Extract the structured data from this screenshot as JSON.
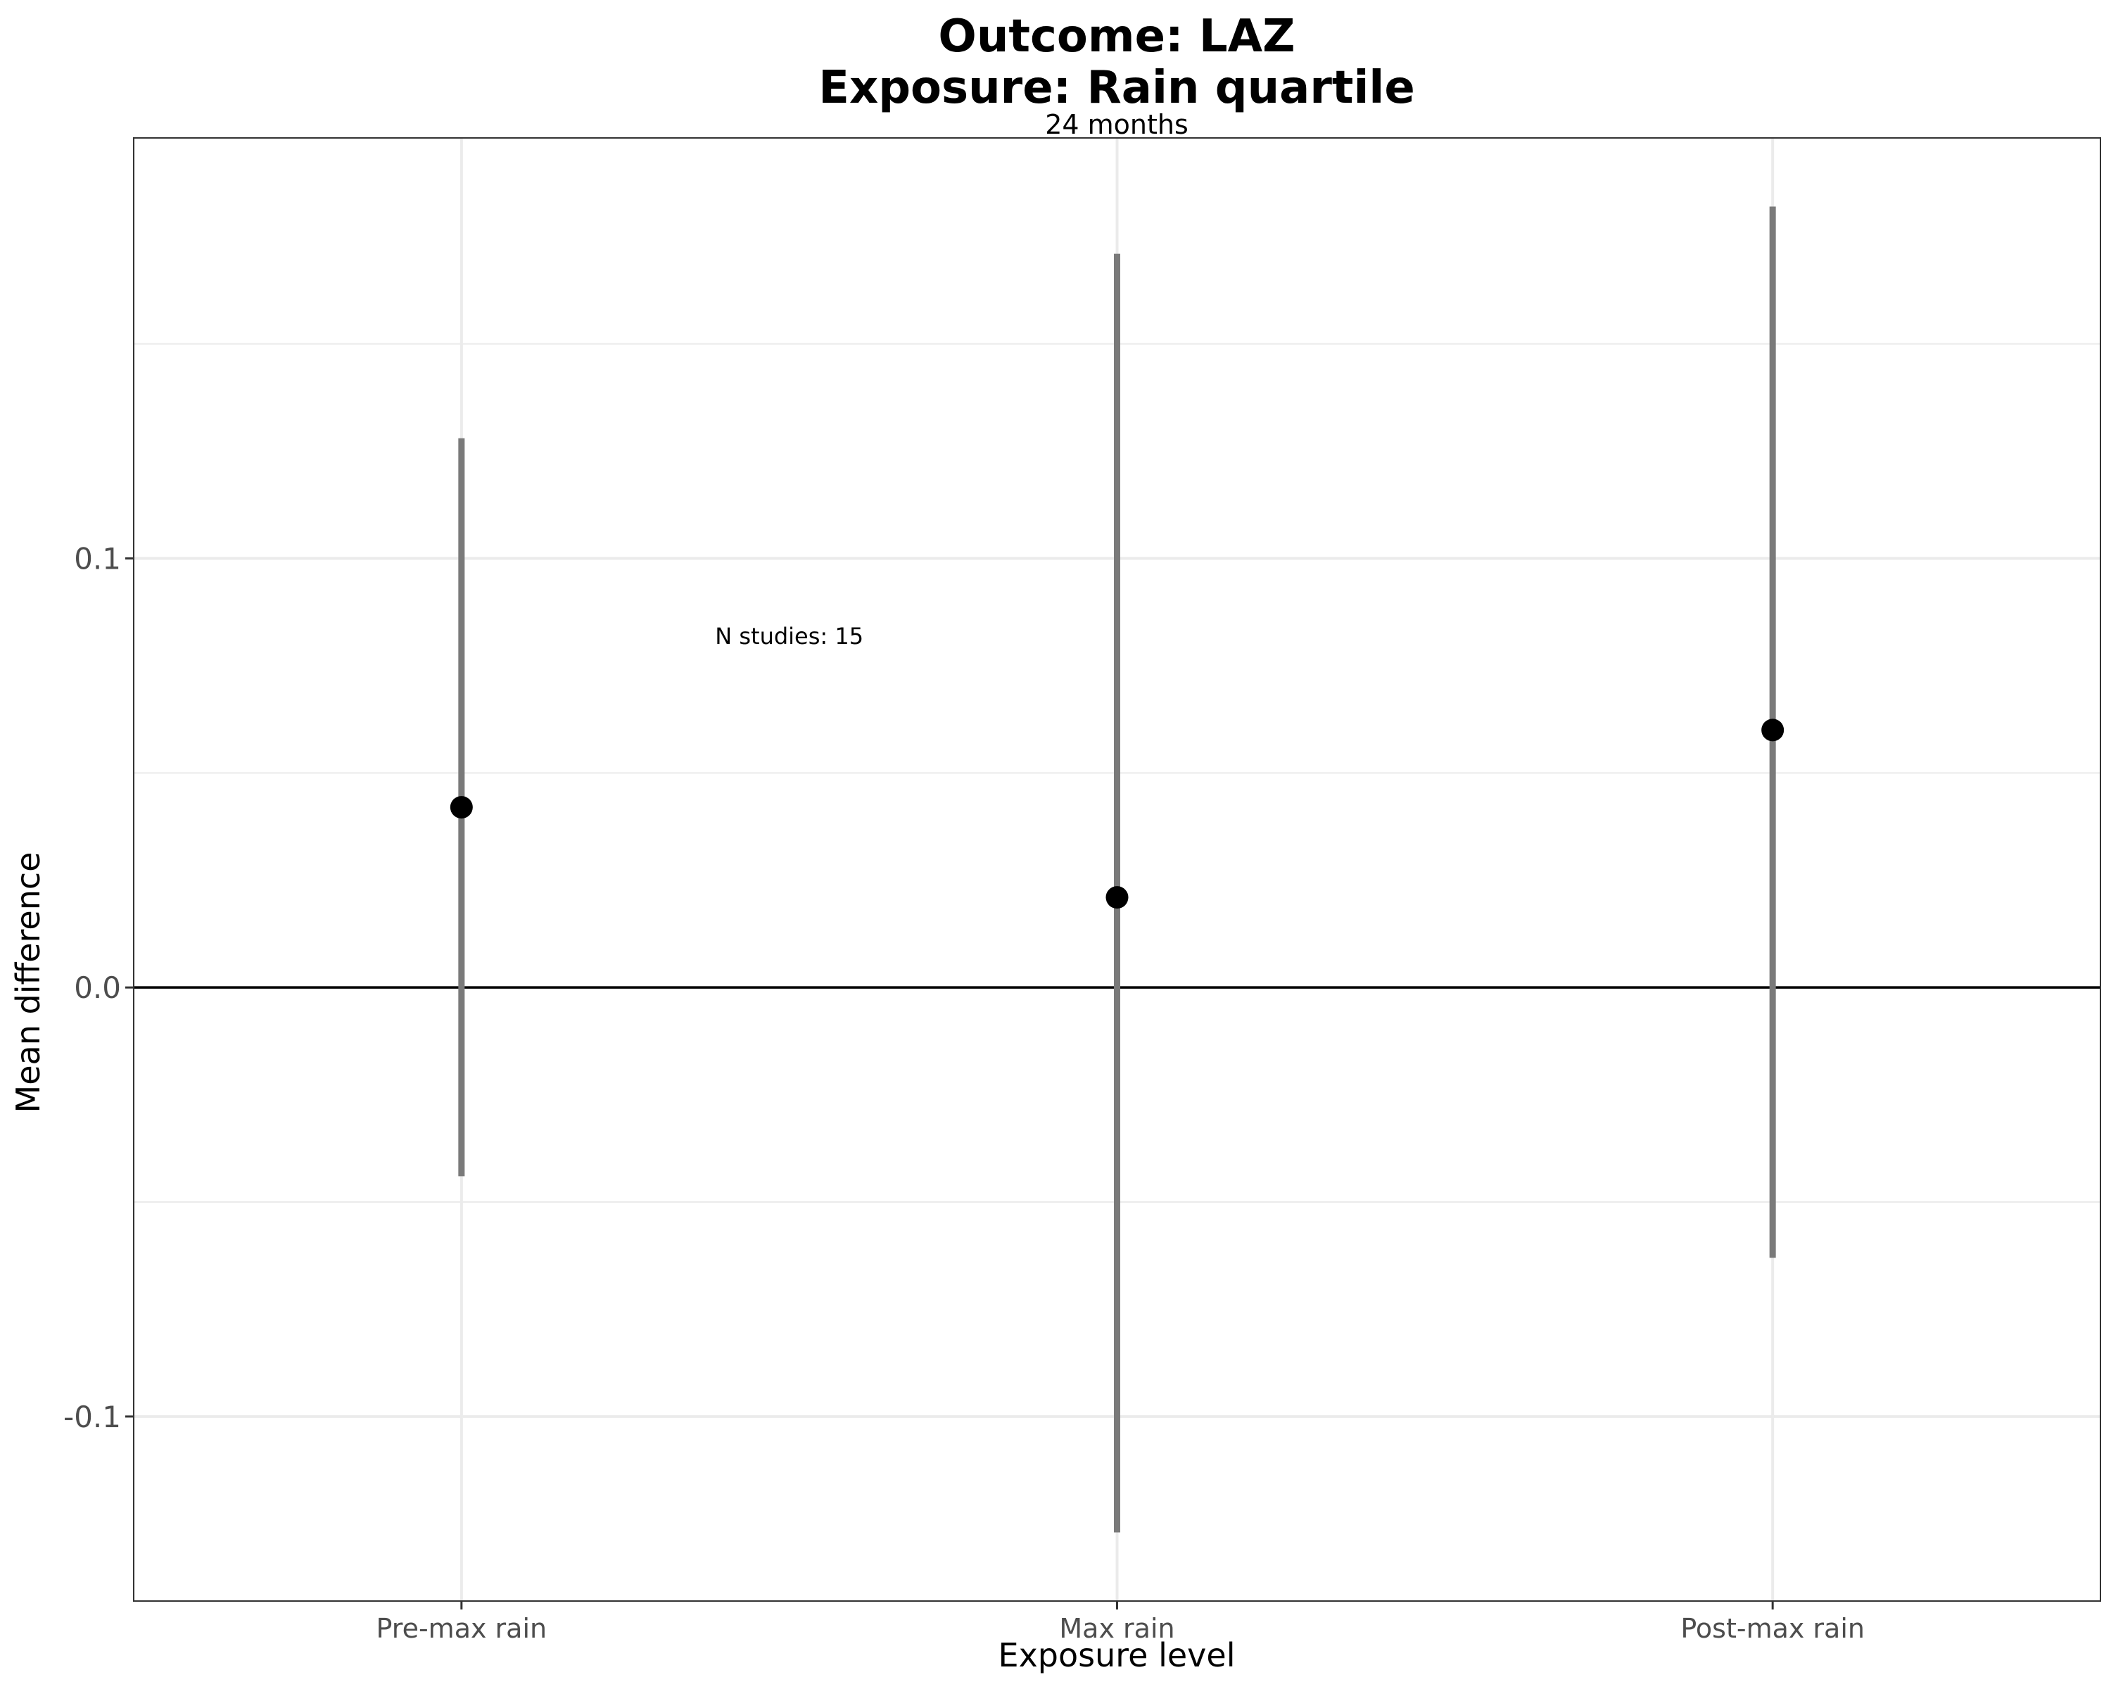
{
  "chart_data": {
    "type": "scatter",
    "title_line1": "Outcome: LAZ",
    "title_line2": "Exposure: Rain quartile",
    "subtitle": "24 months",
    "xlabel": "Exposure level",
    "ylabel": "Mean difference",
    "categories": [
      "Pre-max rain",
      "Max rain",
      "Post-max rain"
    ],
    "series": [
      {
        "values": [
          0.042,
          0.021,
          0.06
        ],
        "lower": [
          -0.044,
          -0.127,
          -0.063
        ],
        "upper": [
          0.128,
          0.171,
          0.182
        ]
      }
    ],
    "ylim": [
      -0.143,
      0.198
    ],
    "y_ticks": [
      -0.1,
      0.0,
      0.1
    ],
    "y_tick_labels": [
      "-0.1",
      "0.0",
      "0.1"
    ],
    "reference_line_y": 0,
    "grid": true,
    "annotation": {
      "text": "N studies: 15",
      "x_category": 0.5,
      "y": 0.082
    },
    "colors": {
      "point": "#000000",
      "interval": "#7a7a7a",
      "grid": "#ebebeb",
      "reference_line": "#000000"
    }
  }
}
